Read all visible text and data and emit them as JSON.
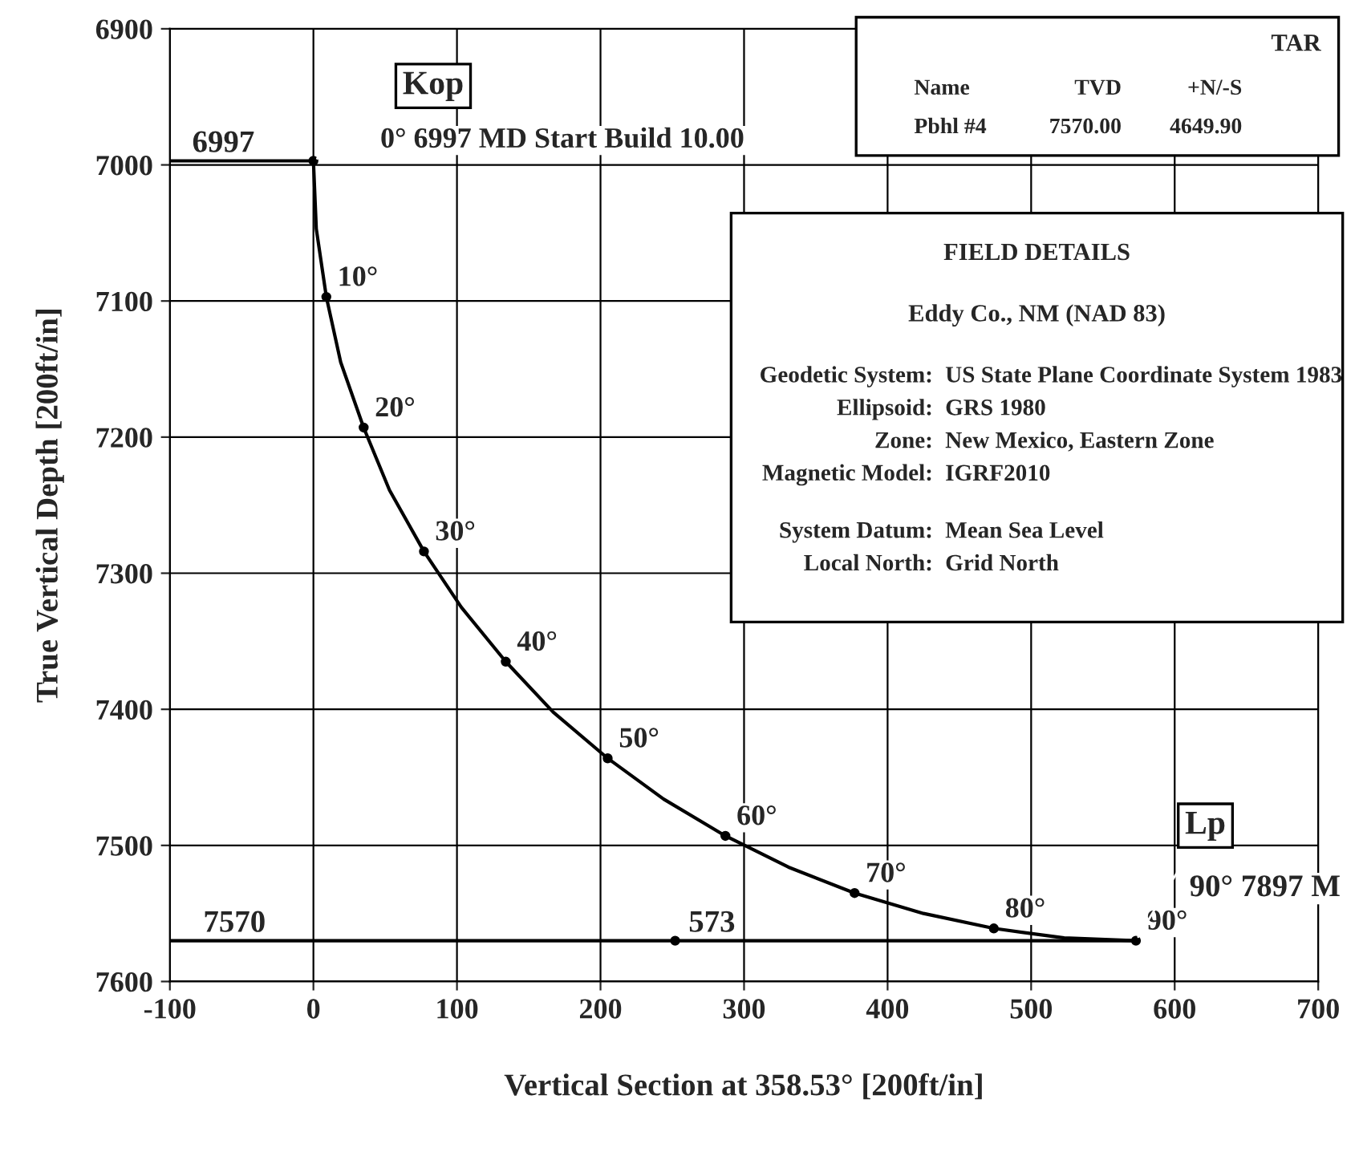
{
  "chart_data": {
    "type": "line",
    "xlabel": "Vertical Section at 358.53° [200ft/in]",
    "ylabel": "True Vertical Depth [200ft/in]",
    "series": [
      {
        "color": "#000000",
        "x": [
          0,
          2,
          9,
          19,
          35,
          53,
          77,
          103,
          134,
          167,
          205,
          244,
          287,
          331,
          377,
          425,
          474,
          523,
          573
        ],
        "values": [
          6997,
          7047,
          7097,
          7145,
          7193,
          7239,
          7284,
          7325,
          7365,
          7402,
          7436,
          7466,
          7493,
          7516,
          7535,
          7550,
          7561,
          7568,
          7570
        ]
      },
      {
        "type": "scatter",
        "color": "#000000",
        "x": [
          0,
          9,
          35,
          77,
          134,
          205,
          287,
          377,
          474,
          573,
          252
        ],
        "values": [
          6997,
          7097,
          7193,
          7284,
          7365,
          7436,
          7493,
          7535,
          7561,
          7570,
          7570
        ]
      },
      {
        "color": "#000000",
        "x": [
          -100,
          0
        ],
        "values": [
          6997,
          6997
        ]
      },
      {
        "color": "#000000",
        "x": [
          -100,
          573
        ],
        "values": [
          7570,
          7570
        ]
      }
    ],
    "xlim": [
      -100,
      700
    ],
    "ylim": [
      7600,
      6900
    ],
    "xticks": [
      -100,
      0,
      100,
      200,
      300,
      400,
      500,
      600,
      700
    ],
    "yticks": [
      6900,
      7000,
      7100,
      7200,
      7300,
      7400,
      7500,
      7600
    ],
    "grid": true,
    "annotations": [
      {
        "text": "Kop",
        "x": 0,
        "y": 6997
      },
      "0° 6997 MD Start Build 10.00",
      {
        "text": "6997",
        "x": -100,
        "y": 6997
      },
      {
        "text": "10°",
        "x": 9,
        "y": 7097
      },
      {
        "text": "20°",
        "x": 35,
        "y": 7193
      },
      {
        "text": "30°",
        "x": 77,
        "y": 7284
      },
      {
        "text": "40°",
        "x": 134,
        "y": 7365
      },
      {
        "text": "50°",
        "x": 205,
        "y": 7436
      },
      {
        "text": "60°",
        "x": 287,
        "y": 7493
      },
      {
        "text": "70°",
        "x": 377,
        "y": 7535
      },
      {
        "text": "80°",
        "x": 474,
        "y": 7561
      },
      {
        "text": "90°",
        "x": 573,
        "y": 7570
      },
      {
        "text": "7570",
        "x": -100,
        "y": 7570
      },
      {
        "text": "573",
        "x": 252,
        "y": 7570
      },
      {
        "text": "Lp",
        "x": 573,
        "y": 7570
      },
      "90° 7897 M",
      "TAR",
      "Name",
      "TVD",
      "+N/-S",
      "Pbhl #4",
      "7570.00",
      "4649.90",
      "FIELD DETAILS",
      "Eddy Co., NM (NAD 83)",
      "Geodetic System:",
      "US State Plane Coordinate System 1983",
      "Ellipsoid:",
      "GRS 1980",
      "Zone:",
      "New Mexico, Eastern Zone",
      "Magnetic Model:",
      "IGRF2010",
      "System Datum:",
      "Mean Sea Level",
      "Local North:",
      "Grid North"
    ]
  }
}
